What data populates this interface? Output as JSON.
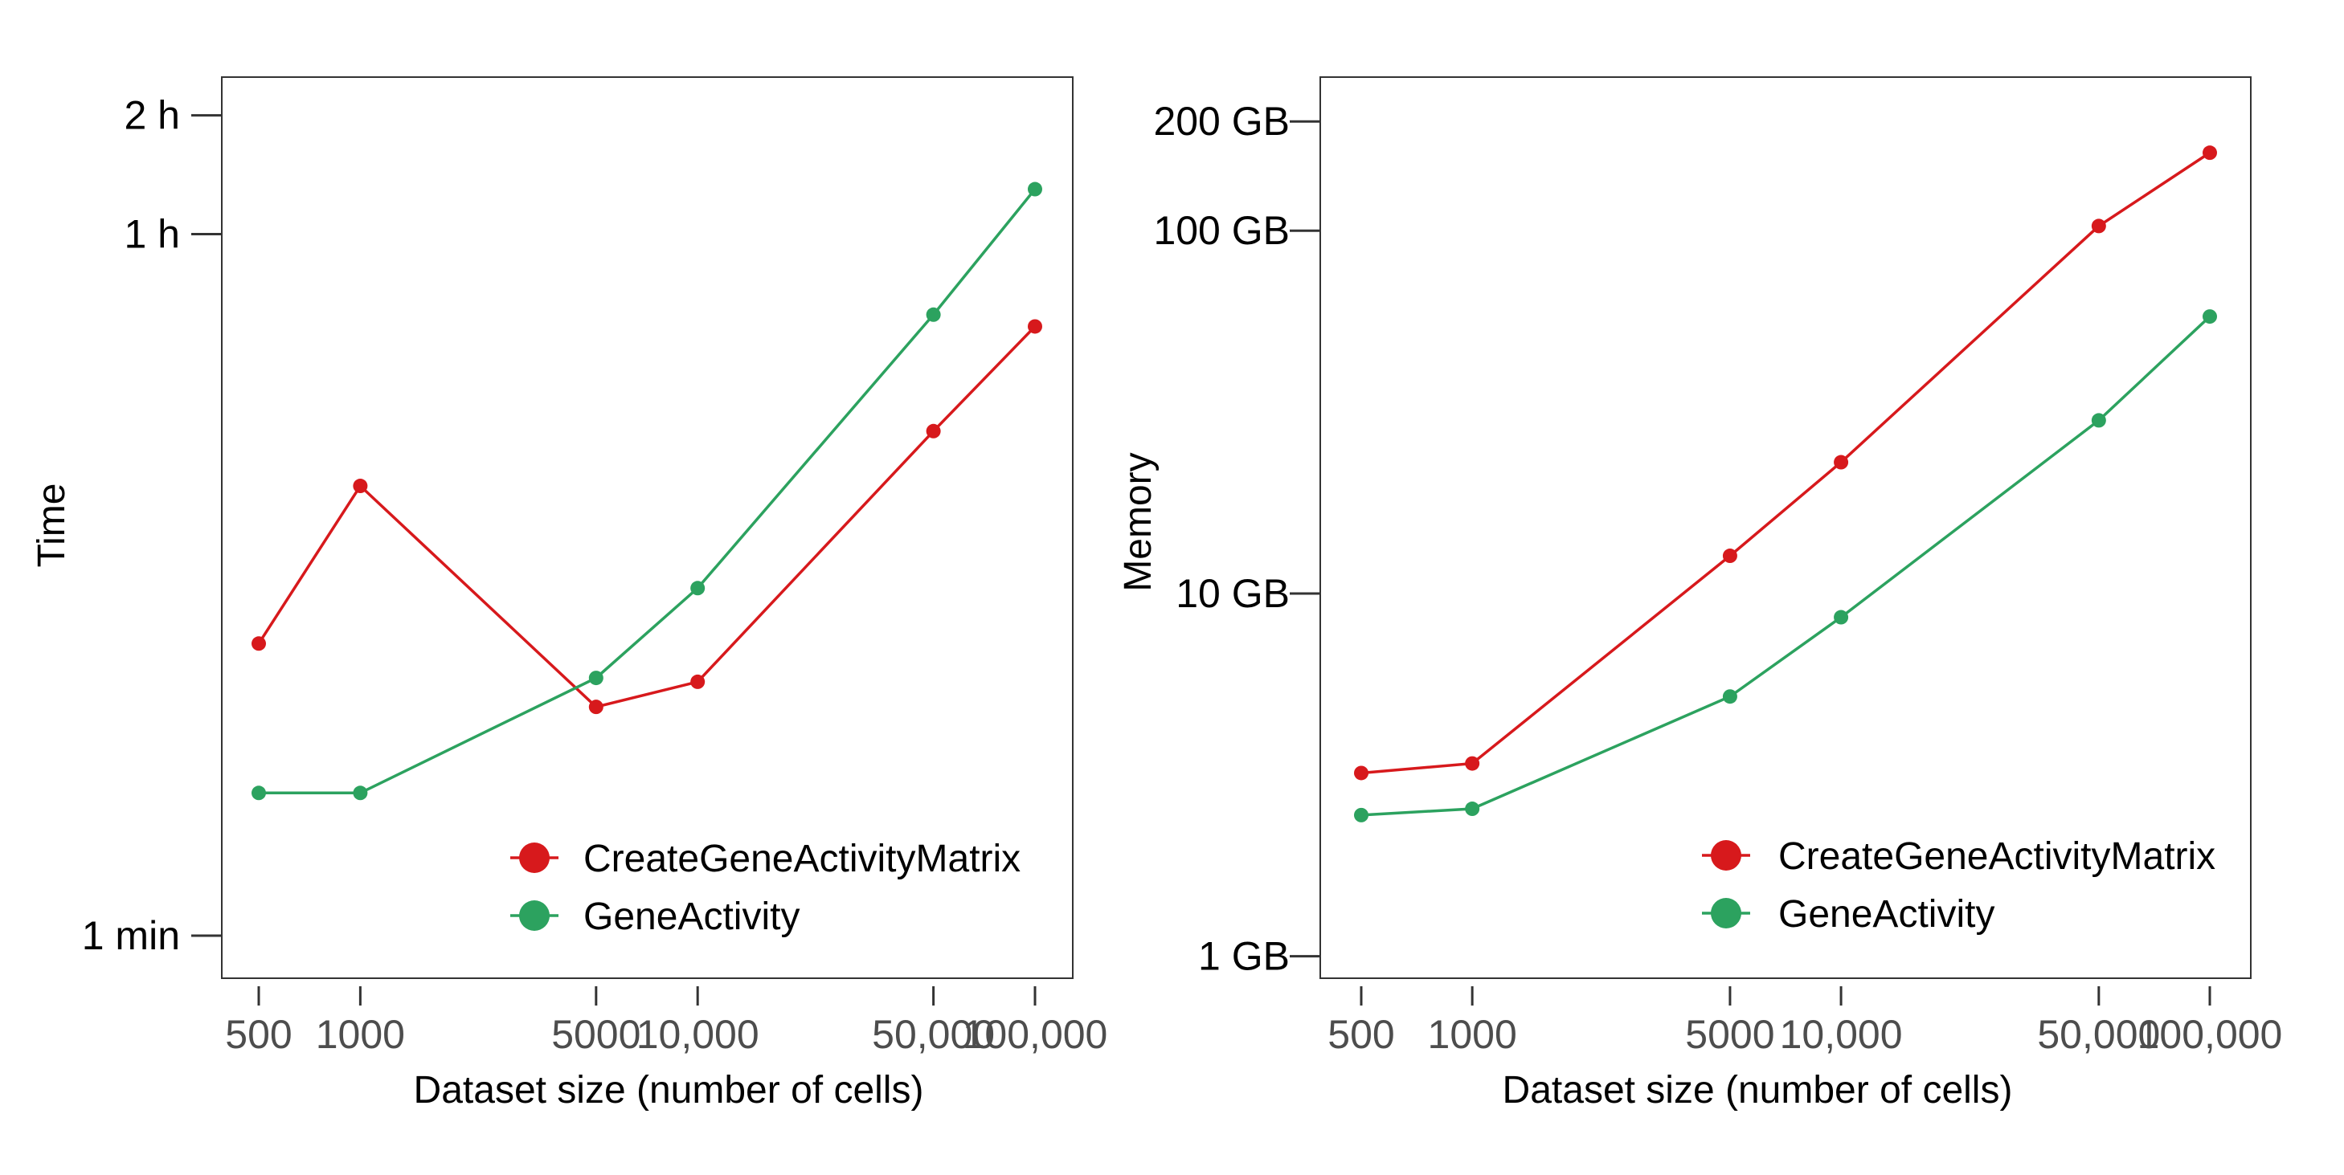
{
  "chart_data": [
    {
      "type": "line",
      "xlabel": "Dataset size (number of cells)",
      "ylabel": "Time",
      "x_scale": "log",
      "y_scale": "log",
      "y_units": "minutes",
      "x": [
        500,
        1000,
        5000,
        10000,
        50000,
        100000
      ],
      "x_tick_labels": [
        "500",
        "1000",
        "5000",
        "10,000",
        "50,000",
        "100,000"
      ],
      "y_ticks": [
        1,
        60,
        120
      ],
      "y_tick_labels": [
        "1 min",
        "1 h",
        "2 h"
      ],
      "ylim": [
        0.78,
        150
      ],
      "grid": false,
      "legend_position": "bottom-right",
      "series": [
        {
          "name": "CreateGeneActivityMatrix",
          "color": "#d7191c",
          "values": [
            5.5,
            13.8,
            3.8,
            4.4,
            19,
            35
          ]
        },
        {
          "name": "GeneActivity",
          "color": "#2ca25f",
          "values": [
            2.3,
            2.3,
            4.5,
            7.6,
            37.5,
            78
          ]
        }
      ]
    },
    {
      "type": "line",
      "xlabel": "Dataset size (number of cells)",
      "ylabel": "Memory",
      "x_scale": "log",
      "y_scale": "log",
      "y_units": "GB",
      "x": [
        500,
        1000,
        5000,
        10000,
        50000,
        100000
      ],
      "x_tick_labels": [
        "500",
        "1000",
        "5000",
        "10,000",
        "50,000",
        "100,000"
      ],
      "y_ticks": [
        1,
        10,
        100,
        200
      ],
      "y_tick_labels": [
        "1 GB",
        "10 GB",
        "100 GB",
        "200 GB"
      ],
      "ylim": [
        0.87,
        265
      ],
      "grid": false,
      "legend_position": "bottom-right",
      "series": [
        {
          "name": "CreateGeneActivityMatrix",
          "color": "#d7191c",
          "values": [
            3.2,
            3.4,
            12.7,
            23,
            103,
            164
          ]
        },
        {
          "name": "GeneActivity",
          "color": "#2ca25f",
          "values": [
            2.45,
            2.55,
            5.2,
            8.6,
            30,
            58
          ]
        }
      ]
    }
  ]
}
